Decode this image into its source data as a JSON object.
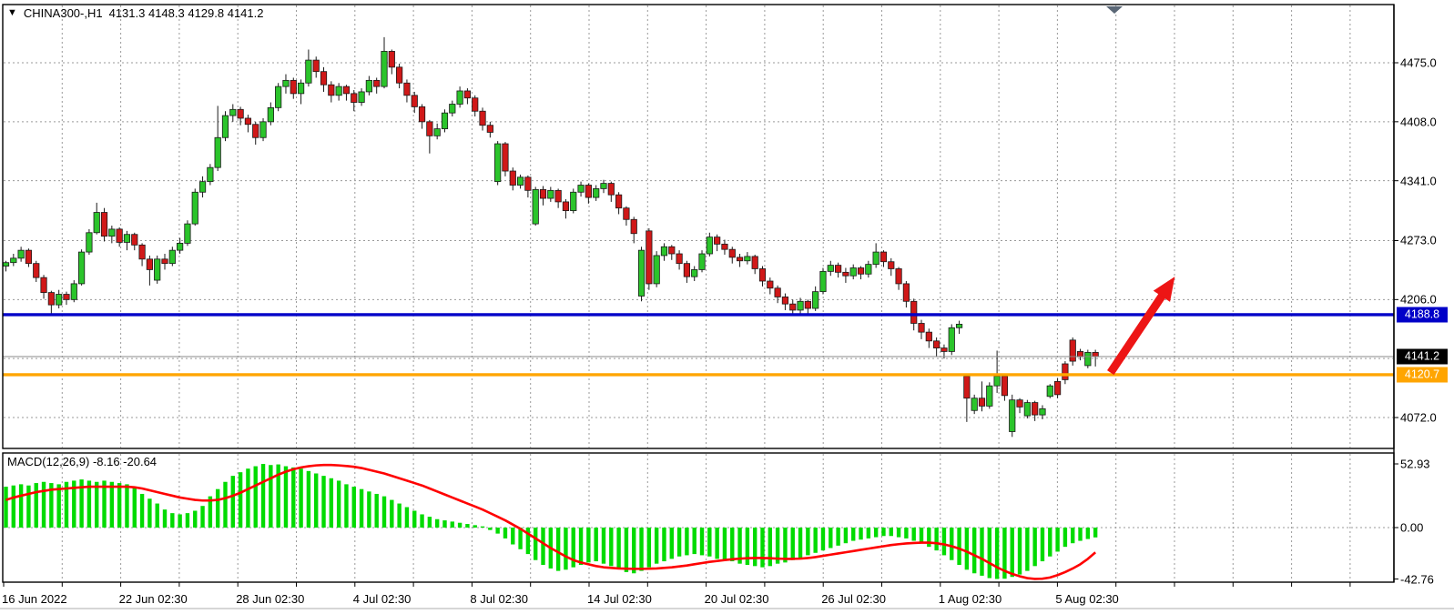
{
  "window": {
    "symbol_title": "CHINA300-,H1",
    "quote_line": "4131.3 4148.3 4129.8 4141.2",
    "collapse_triangle": "▼"
  },
  "colors": {
    "bull": "#2BC42B",
    "bear": "#D01818",
    "candle_outline": "#1a1a1a",
    "grid": "#9A9A9A",
    "panel_border": "#000000",
    "resistance_line": "#0000C8",
    "support_line": "#FFA500",
    "last_price_line": "#8A8A8A",
    "arrow": "#ED1515",
    "macd_hist": "#00DB00",
    "macd_signal": "#FF0000",
    "badge_resistance_bg": "#0000C8",
    "badge_last_bg": "#000000",
    "badge_support_bg": "#FFA500",
    "shift_marker": "#5A6776",
    "bottom_edge": "#C8C8C8"
  },
  "chart_data": {
    "type": "candlestick",
    "title": "CHINA300-,H1",
    "symbol": "CHINA300-",
    "timeframe": "H1",
    "quote_ohlc": {
      "open": 4131.3,
      "high": 4148.3,
      "low": 4129.8,
      "close": 4141.2
    },
    "price_axis": {
      "tick_labels": [
        "4475.0",
        "4408.0",
        "4341.0",
        "4273.0",
        "4206.0",
        "4072.0"
      ],
      "tick_values": [
        4475.0,
        4408.0,
        4341.0,
        4273.0,
        4206.0,
        4072.0
      ],
      "grid_values": [
        4475,
        4408,
        4341,
        4273,
        4206,
        4139,
        4072
      ],
      "range_top": 4541,
      "range_bottom": 4045
    },
    "time_axis": {
      "labels": [
        "16 Jun 2022",
        "22 Jun 02:30",
        "28 Jun 02:30",
        "4 Jul 02:30",
        "8 Jul 02:30",
        "14 Jul 02:30",
        "20 Jul 02:30",
        "26 Jul 02:30",
        "1 Aug 02:30",
        "5 Aug 02:30"
      ]
    },
    "levels": {
      "resistance": {
        "value": 4188.8,
        "label": "4188.8"
      },
      "support": {
        "value": 4120.7,
        "label": "4120.7"
      },
      "last_price": {
        "value": 4141.2,
        "label": "4141.2"
      }
    },
    "annotation_arrow": {
      "from_bar": 146,
      "from_price": 4123,
      "to_bar": 154.5,
      "to_price": 4232
    },
    "candles": [
      [
        4244,
        4250,
        4238,
        4248
      ],
      [
        4248,
        4258,
        4244,
        4253
      ],
      [
        4253,
        4266,
        4249,
        4262
      ],
      [
        4262,
        4264,
        4243,
        4247
      ],
      [
        4247,
        4250,
        4226,
        4231
      ],
      [
        4231,
        4234,
        4207,
        4214
      ],
      [
        4214,
        4216,
        4189,
        4200
      ],
      [
        4200,
        4217,
        4196,
        4212
      ],
      [
        4212,
        4215,
        4200,
        4206
      ],
      [
        4206,
        4228,
        4203,
        4224
      ],
      [
        4224,
        4263,
        4222,
        4260
      ],
      [
        4260,
        4286,
        4257,
        4282
      ],
      [
        4282,
        4316,
        4280,
        4305
      ],
      [
        4305,
        4310,
        4272,
        4278
      ],
      [
        4278,
        4290,
        4270,
        4286
      ],
      [
        4286,
        4288,
        4266,
        4271
      ],
      [
        4271,
        4284,
        4262,
        4280
      ],
      [
        4280,
        4282,
        4262,
        4268
      ],
      [
        4268,
        4270,
        4244,
        4252
      ],
      [
        4252,
        4256,
        4222,
        4240
      ],
      [
        4228,
        4256,
        4224,
        4252
      ],
      [
        4252,
        4258,
        4240,
        4247
      ],
      [
        4247,
        4266,
        4244,
        4262
      ],
      [
        4262,
        4276,
        4258,
        4270
      ],
      [
        4270,
        4296,
        4267,
        4292
      ],
      [
        4292,
        4332,
        4290,
        4328
      ],
      [
        4328,
        4346,
        4322,
        4340
      ],
      [
        4340,
        4360,
        4336,
        4356
      ],
      [
        4356,
        4426,
        4352,
        4390
      ],
      [
        4390,
        4420,
        4386,
        4415
      ],
      [
        4415,
        4428,
        4408,
        4422
      ],
      [
        4422,
        4425,
        4404,
        4412
      ],
      [
        4412,
        4416,
        4396,
        4405
      ],
      [
        4405,
        4408,
        4382,
        4390
      ],
      [
        4390,
        4412,
        4386,
        4408
      ],
      [
        4408,
        4430,
        4404,
        4424
      ],
      [
        4424,
        4452,
        4420,
        4448
      ],
      [
        4448,
        4462,
        4440,
        4455
      ],
      [
        4455,
        4458,
        4434,
        4440
      ],
      [
        4440,
        4456,
        4428,
        4452
      ],
      [
        4452,
        4490,
        4448,
        4478
      ],
      [
        4478,
        4482,
        4458,
        4465
      ],
      [
        4465,
        4470,
        4442,
        4450
      ],
      [
        4450,
        4454,
        4430,
        4438
      ],
      [
        4438,
        4452,
        4432,
        4448
      ],
      [
        4448,
        4450,
        4432,
        4440
      ],
      [
        4440,
        4444,
        4420,
        4430
      ],
      [
        4430,
        4446,
        4426,
        4442
      ],
      [
        4442,
        4460,
        4438,
        4455
      ],
      [
        4455,
        4458,
        4440,
        4448
      ],
      [
        4448,
        4504,
        4446,
        4488
      ],
      [
        4488,
        4490,
        4462,
        4470
      ],
      [
        4470,
        4474,
        4446,
        4452
      ],
      [
        4452,
        4456,
        4430,
        4438
      ],
      [
        4438,
        4442,
        4418,
        4425
      ],
      [
        4425,
        4428,
        4400,
        4408
      ],
      [
        4408,
        4410,
        4372,
        4392
      ],
      [
        4392,
        4406,
        4388,
        4400
      ],
      [
        4400,
        4422,
        4396,
        4418
      ],
      [
        4418,
        4432,
        4414,
        4428
      ],
      [
        4428,
        4448,
        4424,
        4443
      ],
      [
        4443,
        4446,
        4428,
        4435
      ],
      [
        4435,
        4438,
        4414,
        4420
      ],
      [
        4420,
        4424,
        4398,
        4404
      ],
      [
        4404,
        4408,
        4390,
        4396
      ],
      [
        4340,
        4386,
        4336,
        4383
      ],
      [
        4383,
        4385,
        4346,
        4352
      ],
      [
        4352,
        4356,
        4330,
        4336
      ],
      [
        4336,
        4348,
        4332,
        4345
      ],
      [
        4345,
        4347,
        4322,
        4330
      ],
      [
        4292,
        4334,
        4290,
        4331
      ],
      [
        4331,
        4335,
        4313,
        4321
      ],
      [
        4321,
        4334,
        4317,
        4330
      ],
      [
        4330,
        4332,
        4310,
        4317
      ],
      [
        4317,
        4320,
        4298,
        4307
      ],
      [
        4307,
        4332,
        4304,
        4328
      ],
      [
        4328,
        4340,
        4323,
        4336
      ],
      [
        4336,
        4338,
        4315,
        4322
      ],
      [
        4322,
        4336,
        4318,
        4332
      ],
      [
        4332,
        4342,
        4327,
        4338
      ],
      [
        4338,
        4340,
        4317,
        4325
      ],
      [
        4325,
        4328,
        4303,
        4310
      ],
      [
        4310,
        4312,
        4290,
        4297
      ],
      [
        4297,
        4300,
        4270,
        4281
      ],
      [
        4210,
        4266,
        4204,
        4262
      ],
      [
        4284,
        4287,
        4217,
        4224
      ],
      [
        4224,
        4261,
        4220,
        4256
      ],
      [
        4256,
        4270,
        4250,
        4266
      ],
      [
        4266,
        4268,
        4251,
        4258
      ],
      [
        4258,
        4262,
        4240,
        4247
      ],
      [
        4247,
        4250,
        4225,
        4232
      ],
      [
        4232,
        4244,
        4227,
        4240
      ],
      [
        4240,
        4262,
        4237,
        4258
      ],
      [
        4258,
        4282,
        4255,
        4277
      ],
      [
        4277,
        4280,
        4261,
        4269
      ],
      [
        4269,
        4274,
        4257,
        4263
      ],
      [
        4263,
        4266,
        4247,
        4254
      ],
      [
        4254,
        4258,
        4243,
        4250
      ],
      [
        4250,
        4260,
        4246,
        4255
      ],
      [
        4255,
        4257,
        4235,
        4241
      ],
      [
        4241,
        4244,
        4221,
        4227
      ],
      [
        4227,
        4231,
        4212,
        4219
      ],
      [
        4219,
        4222,
        4202,
        4209
      ],
      [
        4209,
        4213,
        4194,
        4201
      ],
      [
        4201,
        4206,
        4188,
        4194
      ],
      [
        4194,
        4208,
        4190,
        4204
      ],
      [
        4204,
        4206,
        4189,
        4196
      ],
      [
        4196,
        4221,
        4193,
        4215
      ],
      [
        4215,
        4242,
        4212,
        4238
      ],
      [
        4238,
        4250,
        4233,
        4245
      ],
      [
        4245,
        4248,
        4231,
        4237
      ],
      [
        4237,
        4242,
        4225,
        4233
      ],
      [
        4233,
        4246,
        4229,
        4242
      ],
      [
        4242,
        4244,
        4229,
        4235
      ],
      [
        4235,
        4250,
        4231,
        4246
      ],
      [
        4246,
        4270,
        4242,
        4260
      ],
      [
        4260,
        4262,
        4243,
        4249
      ],
      [
        4249,
        4253,
        4233,
        4241
      ],
      [
        4241,
        4243,
        4217,
        4224
      ],
      [
        4224,
        4227,
        4197,
        4204
      ],
      [
        4204,
        4207,
        4171,
        4179
      ],
      [
        4179,
        4183,
        4161,
        4169
      ],
      [
        4169,
        4173,
        4151,
        4159
      ],
      [
        4159,
        4163,
        4141,
        4151
      ],
      [
        4151,
        4155,
        4139,
        4147
      ],
      [
        4147,
        4178,
        4143,
        4174
      ],
      [
        4174,
        4182,
        4167,
        4178
      ],
      [
        4119,
        4121,
        4067,
        4094
      ],
      [
        4080,
        4098,
        4076,
        4094
      ],
      [
        4094,
        4113,
        4079,
        4085
      ],
      [
        4085,
        4112,
        4082,
        4108
      ],
      [
        4108,
        4148,
        4100,
        4119
      ],
      [
        4119,
        4121,
        4091,
        4097
      ],
      [
        4056,
        4098,
        4050,
        4092
      ],
      [
        4092,
        4094,
        4077,
        4084
      ],
      [
        4074,
        4092,
        4071,
        4089
      ],
      [
        4089,
        4091,
        4068,
        4075
      ],
      [
        4075,
        4086,
        4070,
        4082
      ],
      [
        4096,
        4110,
        4094,
        4108
      ],
      [
        4113,
        4117,
        4094,
        4098
      ],
      [
        4133,
        4136,
        4110,
        4115
      ],
      [
        4160,
        4163,
        4131,
        4136
      ],
      [
        4147,
        4150,
        4137,
        4141
      ],
      [
        4131,
        4149,
        4128,
        4146
      ],
      [
        4146,
        4149,
        4130,
        4141.2
      ]
    ],
    "macd": {
      "name_label": "MACD(12,26,9)",
      "values_label": "-8.16 -20.64",
      "main_value": -8.16,
      "signal_value": -20.64,
      "axis_labels": [
        "52.93",
        "0.00",
        "-42.76"
      ],
      "axis_values": [
        52.93,
        0,
        -42.76
      ],
      "histogram": [
        34,
        35,
        36,
        35,
        37,
        38,
        37,
        36,
        38,
        39,
        40,
        39,
        38,
        39,
        38,
        37,
        36,
        33,
        28,
        24,
        20,
        15,
        12,
        11,
        12,
        14,
        18,
        26,
        32,
        38,
        43,
        46,
        49,
        51,
        52.9,
        52,
        52.5,
        51,
        50,
        49,
        47,
        45,
        43,
        41,
        39,
        36,
        34,
        32,
        30,
        28,
        26,
        23,
        20,
        17,
        14,
        11,
        9,
        7,
        6,
        5,
        4,
        3,
        2,
        1,
        -2,
        -5,
        -9,
        -14,
        -18,
        -22,
        -27,
        -31,
        -34,
        -36,
        -35,
        -33,
        -31,
        -29,
        -28,
        -30,
        -32,
        -34,
        -37,
        -38,
        -36,
        -33,
        -30,
        -28,
        -26,
        -24,
        -23,
        -22,
        -23,
        -24,
        -26,
        -27,
        -28,
        -30,
        -31,
        -32,
        -33,
        -32,
        -30,
        -29,
        -27,
        -25,
        -23,
        -21,
        -19,
        -17,
        -15,
        -13,
        -11,
        -10,
        -9,
        -8,
        -7,
        -7,
        -8,
        -9,
        -11,
        -13,
        -16,
        -19,
        -23,
        -27,
        -31,
        -35,
        -38,
        -40,
        -42,
        -42.7,
        -42.5,
        -41,
        -39,
        -36,
        -32,
        -28,
        -24,
        -20,
        -16,
        -13,
        -11,
        -9.5,
        -8.16
      ],
      "signal": [
        23,
        25,
        26.5,
        28,
        29.5,
        30.5,
        31.5,
        32,
        32.5,
        33,
        33.5,
        34,
        34,
        34,
        34,
        34,
        34,
        33.5,
        32.5,
        31,
        29.5,
        28,
        26.5,
        25,
        24,
        23,
        22.5,
        22.5,
        23,
        24.5,
        26.5,
        29,
        32,
        35,
        38,
        41,
        44,
        46.5,
        48.5,
        50,
        51,
        51.7,
        52,
        52,
        51.7,
        51.2,
        50.5,
        49.5,
        48,
        46.5,
        45,
        43,
        41,
        39,
        37,
        35,
        32.5,
        30,
        27.5,
        25,
        22.5,
        20,
        17.5,
        15,
        12,
        9,
        6,
        2.5,
        -1,
        -5,
        -9,
        -13,
        -17,
        -20.5,
        -24,
        -27,
        -29,
        -30.5,
        -32,
        -33,
        -33.5,
        -34,
        -34.2,
        -34.3,
        -34.3,
        -34.2,
        -34,
        -33.5,
        -33,
        -32.3,
        -31.5,
        -30.5,
        -29.5,
        -28.5,
        -27.8,
        -27,
        -26.3,
        -25.8,
        -25.5,
        -25.3,
        -25.3,
        -25.5,
        -25.8,
        -26,
        -26,
        -25.8,
        -25.3,
        -24.5,
        -23.5,
        -22.5,
        -21.5,
        -20.5,
        -19.5,
        -18.5,
        -17.5,
        -16.5,
        -15.5,
        -14.5,
        -13.8,
        -13.2,
        -12.8,
        -12.5,
        -12.5,
        -13,
        -14,
        -15.5,
        -17.5,
        -20,
        -23,
        -26,
        -29.5,
        -33,
        -36,
        -38.5,
        -40.5,
        -42,
        -42.7,
        -42.5,
        -41.5,
        -39.5,
        -37,
        -34,
        -30.5,
        -26,
        -20.64
      ]
    }
  }
}
